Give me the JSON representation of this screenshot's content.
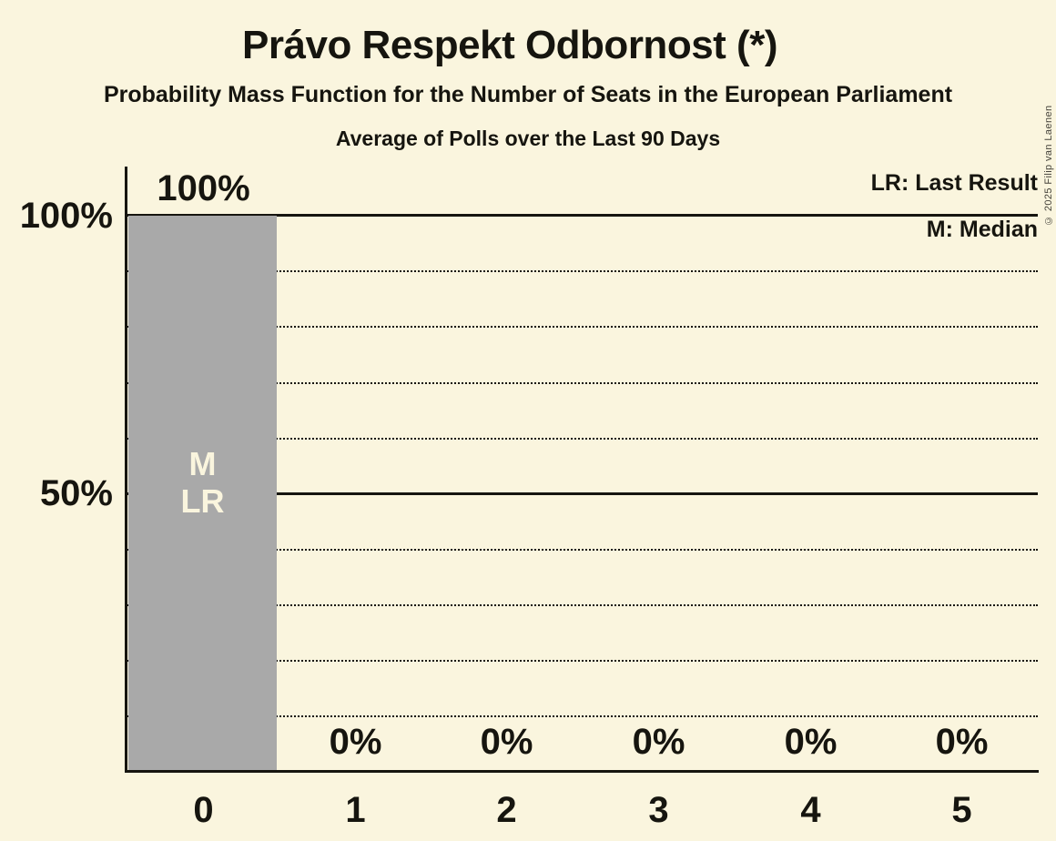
{
  "copyright": "© 2025 Filip van Laenen",
  "chart_data": {
    "type": "bar",
    "title": "Právo Respekt Odbornost (*)",
    "subtitle": "Probability Mass Function for the Number of Seats in the European Parliament",
    "note": "Average of Polls over the Last 90 Days",
    "categories": [
      "0",
      "1",
      "2",
      "3",
      "4",
      "5"
    ],
    "values": [
      100,
      0,
      0,
      0,
      0,
      0
    ],
    "value_labels": [
      "100%",
      "0%",
      "0%",
      "0%",
      "0%",
      "0%"
    ],
    "ylim": [
      0,
      100
    ],
    "yticks": [
      {
        "value": 100,
        "label": "100%"
      },
      {
        "value": 50,
        "label": "50%"
      }
    ],
    "solid_gridlines": [
      100,
      50
    ],
    "dotted_gridlines": [
      90,
      80,
      70,
      60,
      40,
      30,
      20,
      10
    ],
    "legend": [
      "LR: Last Result",
      "M: Median"
    ],
    "annotations": [
      "M",
      "LR"
    ],
    "annotated_bar_index": 0,
    "grid": "horizontal-only",
    "legend_position": "top-right",
    "colors": {
      "background": "#FAF5DE",
      "bar": "#A9A9A9",
      "text": "#16150F",
      "bar_text": "#FAF5DE"
    }
  }
}
